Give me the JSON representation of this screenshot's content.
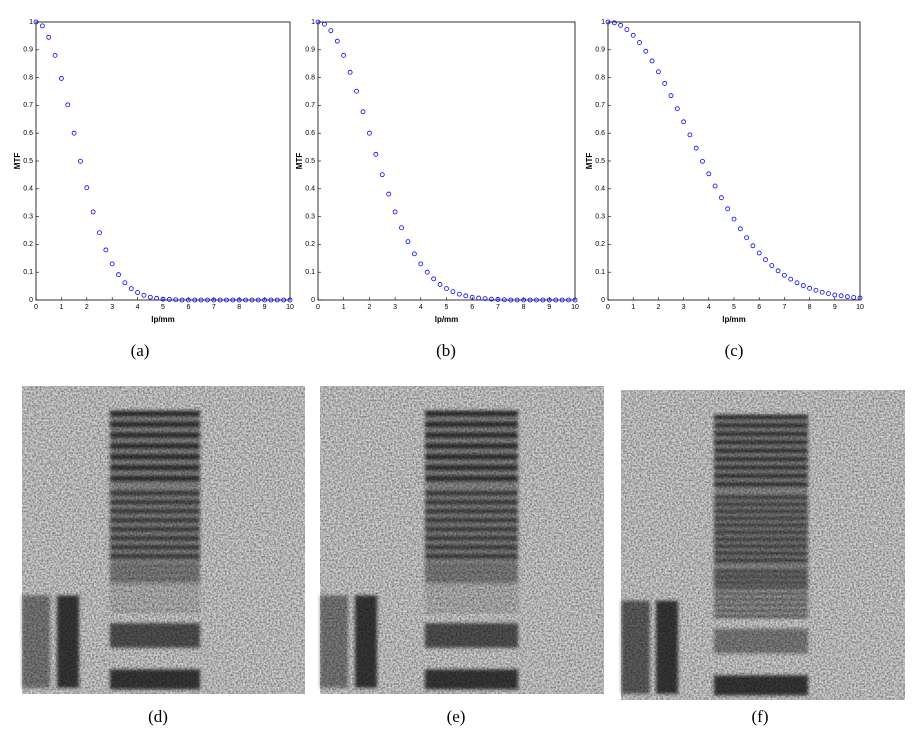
{
  "chart_data": [
    {
      "type": "scatter",
      "xlabel": "lp/mm",
      "ylabel": "MTF",
      "color": "#0000ff",
      "marker": "circle-open",
      "x": [
        0,
        0.25,
        0.5,
        0.75,
        1,
        1.25,
        1.5,
        1.75,
        2,
        2.25,
        2.5,
        2.75,
        3,
        3.25,
        3.5,
        3.75,
        4,
        4.25,
        4.5,
        4.75,
        5,
        5.25,
        5.5,
        5.75,
        6,
        6.25,
        6.5,
        6.75,
        7,
        7.25,
        7.5,
        7.75,
        8,
        8.25,
        8.5,
        8.75,
        9,
        9.25,
        9.5,
        9.75,
        10
      ],
      "values": [
        1,
        0.986,
        0.945,
        0.88,
        0.797,
        0.702,
        0.6,
        0.499,
        0.404,
        0.317,
        0.242,
        0.18,
        0.13,
        0.091,
        0.062,
        0.041,
        0.027,
        0.017,
        0.01,
        0.006,
        0.003,
        0.002,
        0.001,
        0,
        0,
        0,
        0,
        0,
        0,
        0,
        0,
        0,
        0,
        0,
        0,
        0,
        0,
        0,
        0,
        0,
        0
      ],
      "xlim": [
        0,
        10
      ],
      "ylim": [
        0,
        1
      ],
      "xticks": [
        0,
        1,
        2,
        3,
        4,
        5,
        6,
        7,
        8,
        9,
        10
      ],
      "yticks": [
        0,
        0.1,
        0.2,
        0.3,
        0.4,
        0.5,
        0.6,
        0.7,
        0.8,
        0.9,
        1
      ]
    },
    {
      "type": "scatter",
      "xlabel": "lp/mm",
      "ylabel": "MTF",
      "color": "#0000ff",
      "marker": "circle-open",
      "x": [
        0,
        0.25,
        0.5,
        0.75,
        1,
        1.25,
        1.5,
        1.75,
        2,
        2.25,
        2.5,
        2.75,
        3,
        3.25,
        3.5,
        3.75,
        4,
        4.25,
        4.5,
        4.75,
        5,
        5.25,
        5.5,
        5.75,
        6,
        6.25,
        6.5,
        6.75,
        7,
        7.25,
        7.5,
        7.75,
        8,
        8.25,
        8.5,
        8.75,
        9,
        9.25,
        9.5,
        9.75,
        10
      ],
      "values": [
        1,
        0.992,
        0.969,
        0.931,
        0.88,
        0.819,
        0.751,
        0.677,
        0.6,
        0.524,
        0.451,
        0.381,
        0.317,
        0.26,
        0.21,
        0.166,
        0.13,
        0.1,
        0.076,
        0.056,
        0.041,
        0.03,
        0.021,
        0.015,
        0.01,
        0.007,
        0.005,
        0.003,
        0.002,
        0.001,
        0,
        0,
        0,
        0,
        0,
        0,
        0,
        0,
        0,
        0,
        0
      ],
      "xlim": [
        0,
        10
      ],
      "ylim": [
        0,
        1
      ],
      "xticks": [
        0,
        1,
        2,
        3,
        4,
        5,
        6,
        7,
        8,
        9,
        10
      ],
      "yticks": [
        0,
        0.1,
        0.2,
        0.3,
        0.4,
        0.5,
        0.6,
        0.7,
        0.8,
        0.9,
        1
      ]
    },
    {
      "type": "scatter",
      "xlabel": "lp/mm",
      "ylabel": "MTF",
      "color": "#0000ff",
      "marker": "circle-open",
      "x": [
        0,
        0.25,
        0.5,
        0.75,
        1,
        1.25,
        1.5,
        1.75,
        2,
        2.25,
        2.5,
        2.75,
        3,
        3.25,
        3.5,
        3.75,
        4,
        4.25,
        4.5,
        4.75,
        5,
        5.25,
        5.5,
        5.75,
        6,
        6.25,
        6.5,
        6.75,
        7,
        7.25,
        7.5,
        7.75,
        8,
        8.25,
        8.5,
        8.75,
        9,
        9.25,
        9.5,
        9.75,
        10
      ],
      "values": [
        1,
        0.997,
        0.988,
        0.973,
        0.952,
        0.926,
        0.895,
        0.86,
        0.821,
        0.779,
        0.735,
        0.688,
        0.641,
        0.594,
        0.546,
        0.499,
        0.454,
        0.41,
        0.368,
        0.328,
        0.291,
        0.256,
        0.224,
        0.195,
        0.169,
        0.145,
        0.124,
        0.105,
        0.089,
        0.075,
        0.062,
        0.052,
        0.042,
        0.035,
        0.028,
        0.023,
        0.018,
        0.015,
        0.012,
        0.009,
        0.007
      ],
      "xlim": [
        0,
        10
      ],
      "ylim": [
        0,
        1
      ],
      "xticks": [
        0,
        1,
        2,
        3,
        4,
        5,
        6,
        7,
        8,
        9,
        10
      ],
      "yticks": [
        0,
        0.1,
        0.2,
        0.3,
        0.4,
        0.5,
        0.6,
        0.7,
        0.8,
        0.9,
        1
      ]
    }
  ],
  "captions": [
    "(a)",
    "(b)",
    "(c)",
    "(d)",
    "(e)",
    "(f)"
  ]
}
